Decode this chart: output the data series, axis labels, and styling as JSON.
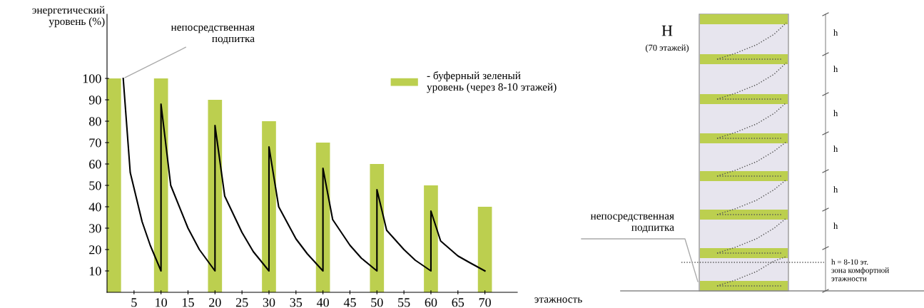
{
  "chart_data": [
    {
      "type": "bar",
      "xlabel": "этажность",
      "ylabel": "энергетический\nуровень (%)",
      "xlim": [
        0,
        76
      ],
      "ylim": [
        0,
        130
      ],
      "xticks": [
        5,
        10,
        15,
        20,
        25,
        30,
        35,
        40,
        45,
        50,
        55,
        60,
        65,
        70
      ],
      "yticks": [
        10,
        20,
        30,
        40,
        50,
        60,
        70,
        80,
        90,
        100
      ],
      "grid": false,
      "legend": "top right",
      "annotations": [
        {
          "text": "непосредственная\nподпитка",
          "x": 3,
          "y": 100
        }
      ],
      "series": [
        {
          "type": "bar",
          "name": "- буферный зеленый\nуровень (через 8-10 этажей)",
          "color": "#bccf4f",
          "x": [
            1.3,
            10,
            20,
            30,
            40,
            50,
            60,
            70
          ],
          "values": [
            100,
            100,
            90,
            80,
            70,
            60,
            50,
            40
          ]
        },
        {
          "type": "line",
          "color": "#000000",
          "line_style": "solid",
          "x": [
            3,
            4.3,
            6.5,
            8,
            10,
            10,
            11.8,
            15,
            17.1,
            20,
            20,
            21.8,
            25,
            27.1,
            30,
            30,
            31.8,
            35,
            37.1,
            40,
            40,
            41.8,
            45,
            47.1,
            50,
            50,
            51.8,
            55,
            57.1,
            60,
            60,
            61.8,
            65,
            67.1,
            70
          ],
          "values": [
            100,
            56,
            33,
            22,
            10,
            88,
            50,
            30,
            20,
            10,
            78,
            45,
            28,
            19,
            10,
            68,
            40,
            25,
            18,
            10,
            58,
            34,
            22,
            16,
            10,
            48,
            29,
            20,
            15,
            10,
            38,
            24,
            17,
            14,
            10
          ]
        }
      ]
    },
    {
      "type": "other",
      "annotations": [
        "H",
        "(70 этажей)",
        "h",
        "h",
        "h",
        "h",
        "h",
        "h",
        "непосредственная\nподпитка",
        "h = 8-10 эт.\nзона комфортной\nэтажности"
      ]
    }
  ]
}
